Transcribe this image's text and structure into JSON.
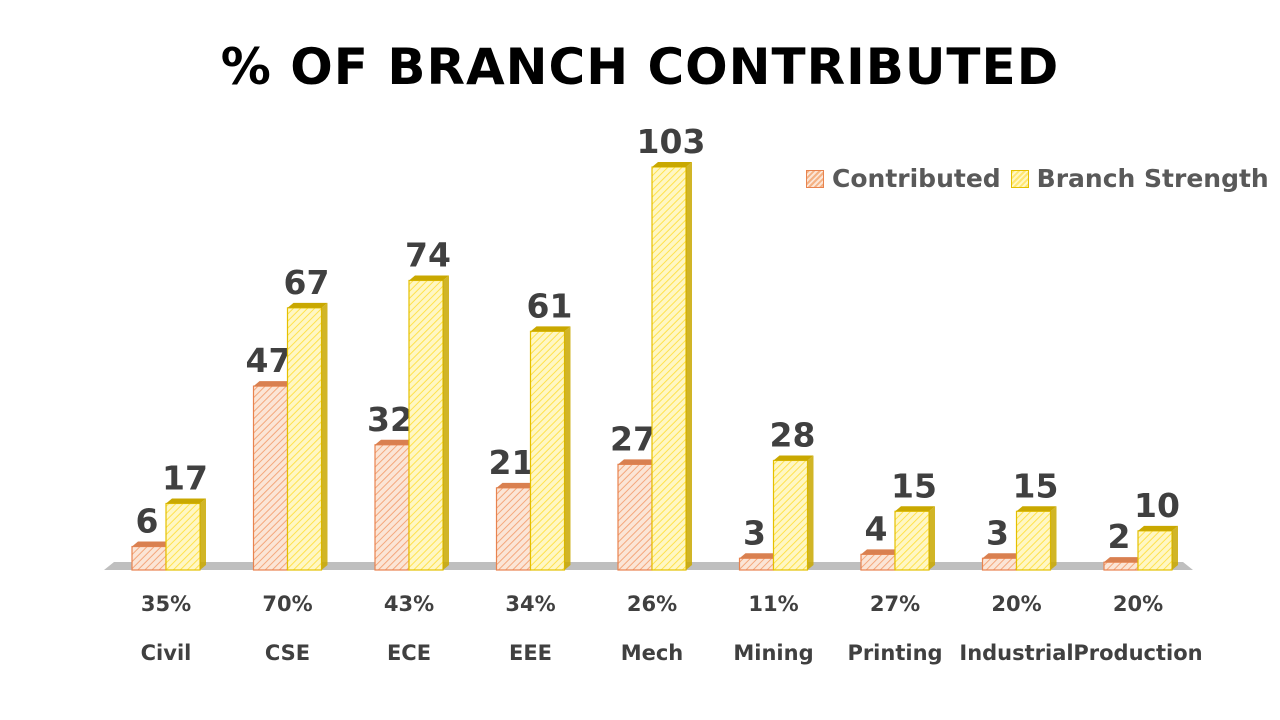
{
  "chart_data": {
    "type": "bar",
    "title": "% OF BRANCH CONTRIBUTED",
    "categories": [
      "Civil",
      "CSE",
      "ECE",
      "EEE",
      "Mech",
      "Mining",
      "Printing",
      "Industrial",
      "Production"
    ],
    "percentages": [
      "35%",
      "70%",
      "43%",
      "34%",
      "26%",
      "11%",
      "27%",
      "20%",
      "20%"
    ],
    "series": [
      {
        "name": "Contributed",
        "values": [
          6,
          47,
          32,
          21,
          27,
          3,
          4,
          3,
          2
        ],
        "color": "#f4b183",
        "stroke": "#e8834f"
      },
      {
        "name": "Branch Strength",
        "values": [
          17,
          67,
          74,
          61,
          103,
          28,
          15,
          15,
          10
        ],
        "color": "#ffe770",
        "stroke": "#e4c000"
      }
    ],
    "ylim": [
      0,
      103
    ],
    "grid": false,
    "legend": "top-right",
    "floor_color": "#bfbfbf"
  }
}
